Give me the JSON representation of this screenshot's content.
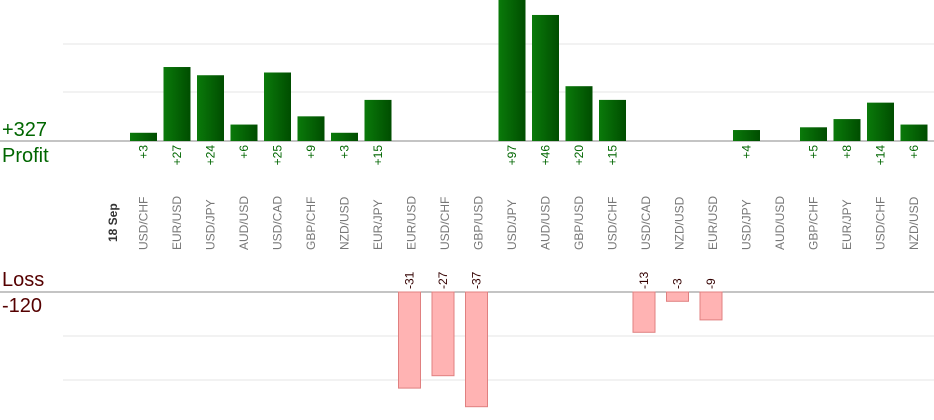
{
  "summary": {
    "profit_total": "+327",
    "profit_label": "Profit",
    "loss_label": "Loss",
    "loss_total": "-120"
  },
  "colors": {
    "profit_dark": "#004d00",
    "profit_light": "#0a7a0a",
    "profit_text": "#006600",
    "loss_fill": "#ffb3b3",
    "loss_stroke": "#e08080",
    "loss_text": "#330000",
    "grid": "#e6e6e6",
    "axis": "#888888"
  },
  "chart_data": {
    "type": "bar",
    "date_label": "18 Sep",
    "categories": [
      "USD/CHF",
      "EUR/USD",
      "USD/JPY",
      "AUD/USD",
      "USD/CAD",
      "GBP/CHF",
      "NZD/USD",
      "EUR/JPY",
      "EUR/USD",
      "USD/CHF",
      "GBP/USD",
      "USD/JPY",
      "AUD/USD",
      "GBP/USD",
      "USD/CHF",
      "USD/CAD",
      "NZD/USD",
      "EUR/USD",
      "USD/JPY",
      "AUD/USD",
      "GBP/CHF",
      "EUR/JPY",
      "USD/CHF",
      "NZD/USD"
    ],
    "values": [
      3,
      27,
      24,
      6,
      25,
      9,
      3,
      15,
      -31,
      -27,
      -37,
      97,
      46,
      20,
      15,
      -13,
      -3,
      -9,
      4,
      null,
      5,
      8,
      14,
      6
    ],
    "value_labels": [
      "+3",
      "+27",
      "+24",
      "+6",
      "+25",
      "+9",
      "+3",
      "+15",
      "-31",
      "-27",
      "-37",
      "+97",
      "+46",
      "+20",
      "+15",
      "-13",
      "-3",
      "-9",
      "+4",
      "",
      "+5",
      "+8",
      "+14",
      "+6"
    ]
  }
}
